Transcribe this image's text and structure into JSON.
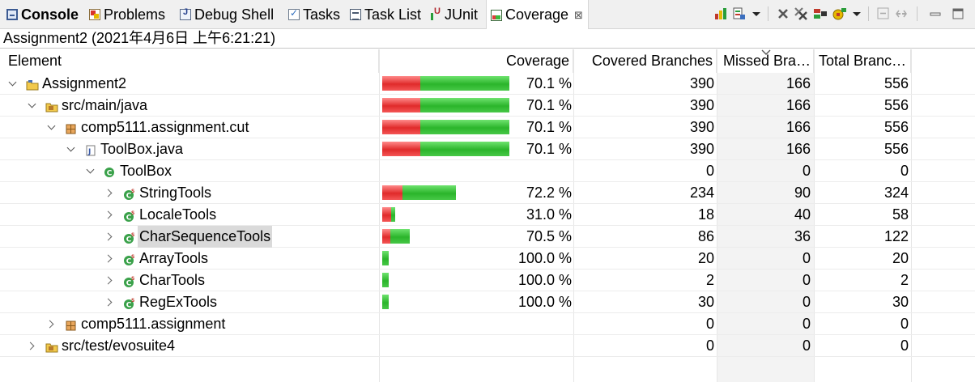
{
  "tabs": [
    {
      "label": "Console",
      "icon": "console-icon",
      "bold": true
    },
    {
      "label": "Problems",
      "icon": "problems-icon"
    },
    {
      "label": "Debug Shell",
      "icon": "debug-shell-icon"
    },
    {
      "label": "Tasks",
      "icon": "tasks-icon"
    },
    {
      "label": "Task List",
      "icon": "task-list-icon"
    },
    {
      "label": "JUnit",
      "icon": "junit-icon"
    },
    {
      "label": "Coverage",
      "icon": "coverage-icon",
      "active": true,
      "close": "⊠"
    }
  ],
  "session_title": "Assignment2 (2021年4月6日 上午6:21:21)",
  "columns": {
    "element": "Element",
    "coverage": "Coverage",
    "covered": "Covered Branches",
    "missed": "Missed Bra…",
    "total": "Total Branc…"
  },
  "colors": {
    "missed_bar": "#e02a2a",
    "covered_bar": "#2bb52b",
    "selection": "#dadada"
  },
  "rows": [
    {
      "name": "Assignment2",
      "icon": "project-icon",
      "level": 0,
      "expander": "open",
      "coverage": "70.1 %",
      "ratio": 0.701,
      "covered": "390",
      "missed": "166",
      "total": "556"
    },
    {
      "name": "src/main/java",
      "icon": "source-folder-icon",
      "level": 1,
      "expander": "open",
      "coverage": "70.1 %",
      "ratio": 0.701,
      "covered": "390",
      "missed": "166",
      "total": "556"
    },
    {
      "name": "comp5111.assignment.cut",
      "icon": "package-icon",
      "level": 2,
      "expander": "open",
      "coverage": "70.1 %",
      "ratio": 0.701,
      "covered": "390",
      "missed": "166",
      "total": "556"
    },
    {
      "name": "ToolBox.java",
      "icon": "java-file-icon",
      "level": 3,
      "expander": "open",
      "coverage": "70.1 %",
      "ratio": 0.701,
      "covered": "390",
      "missed": "166",
      "total": "556"
    },
    {
      "name": "ToolBox",
      "icon": "class-icon",
      "level": 4,
      "expander": "open",
      "coverage": "",
      "ratio": null,
      "covered": "0",
      "missed": "0",
      "total": "0"
    },
    {
      "name": "StringTools",
      "icon": "inner-class-icon",
      "level": 5,
      "expander": "closed",
      "coverage": "72.2 %",
      "ratio": 0.722,
      "covered": "234",
      "missed": "90",
      "total": "324"
    },
    {
      "name": "LocaleTools",
      "icon": "inner-class-icon",
      "level": 5,
      "expander": "closed",
      "coverage": "31.0 %",
      "ratio": 0.31,
      "covered": "18",
      "missed": "40",
      "total": "58"
    },
    {
      "name": "CharSequenceTools",
      "icon": "inner-class-icon",
      "level": 5,
      "expander": "closed",
      "coverage": "70.5 %",
      "ratio": 0.705,
      "covered": "86",
      "missed": "36",
      "total": "122",
      "selected": true
    },
    {
      "name": "ArrayTools",
      "icon": "inner-class-icon",
      "level": 5,
      "expander": "closed",
      "coverage": "100.0 %",
      "ratio": 1.0,
      "covered": "20",
      "missed": "0",
      "total": "20"
    },
    {
      "name": "CharTools",
      "icon": "inner-class-icon",
      "level": 5,
      "expander": "closed",
      "coverage": "100.0 %",
      "ratio": 1.0,
      "covered": "2",
      "missed": "0",
      "total": "2"
    },
    {
      "name": "RegExTools",
      "icon": "inner-class-icon",
      "level": 5,
      "expander": "closed",
      "coverage": "100.0 %",
      "ratio": 1.0,
      "covered": "30",
      "missed": "0",
      "total": "30"
    },
    {
      "name": "comp5111.assignment",
      "icon": "package-icon",
      "level": 2,
      "expander": "closed",
      "coverage": "",
      "ratio": null,
      "covered": "0",
      "missed": "0",
      "total": "0"
    },
    {
      "name": "src/test/evosuite4",
      "icon": "source-folder-icon",
      "level": 1,
      "expander": "closed",
      "coverage": "",
      "ratio": null,
      "covered": "0",
      "missed": "0",
      "total": "0"
    }
  ],
  "toolbar_icons": [
    "open-report-icon",
    "import-icon",
    "dropdown-icon",
    "remove-session-icon",
    "remove-all-sessions-icon",
    "merge-sessions-icon",
    "select-session-icon",
    "dropdown-icon",
    "collapse-all-icon",
    "link-editor-icon",
    "minimize-icon",
    "maximize-icon"
  ]
}
